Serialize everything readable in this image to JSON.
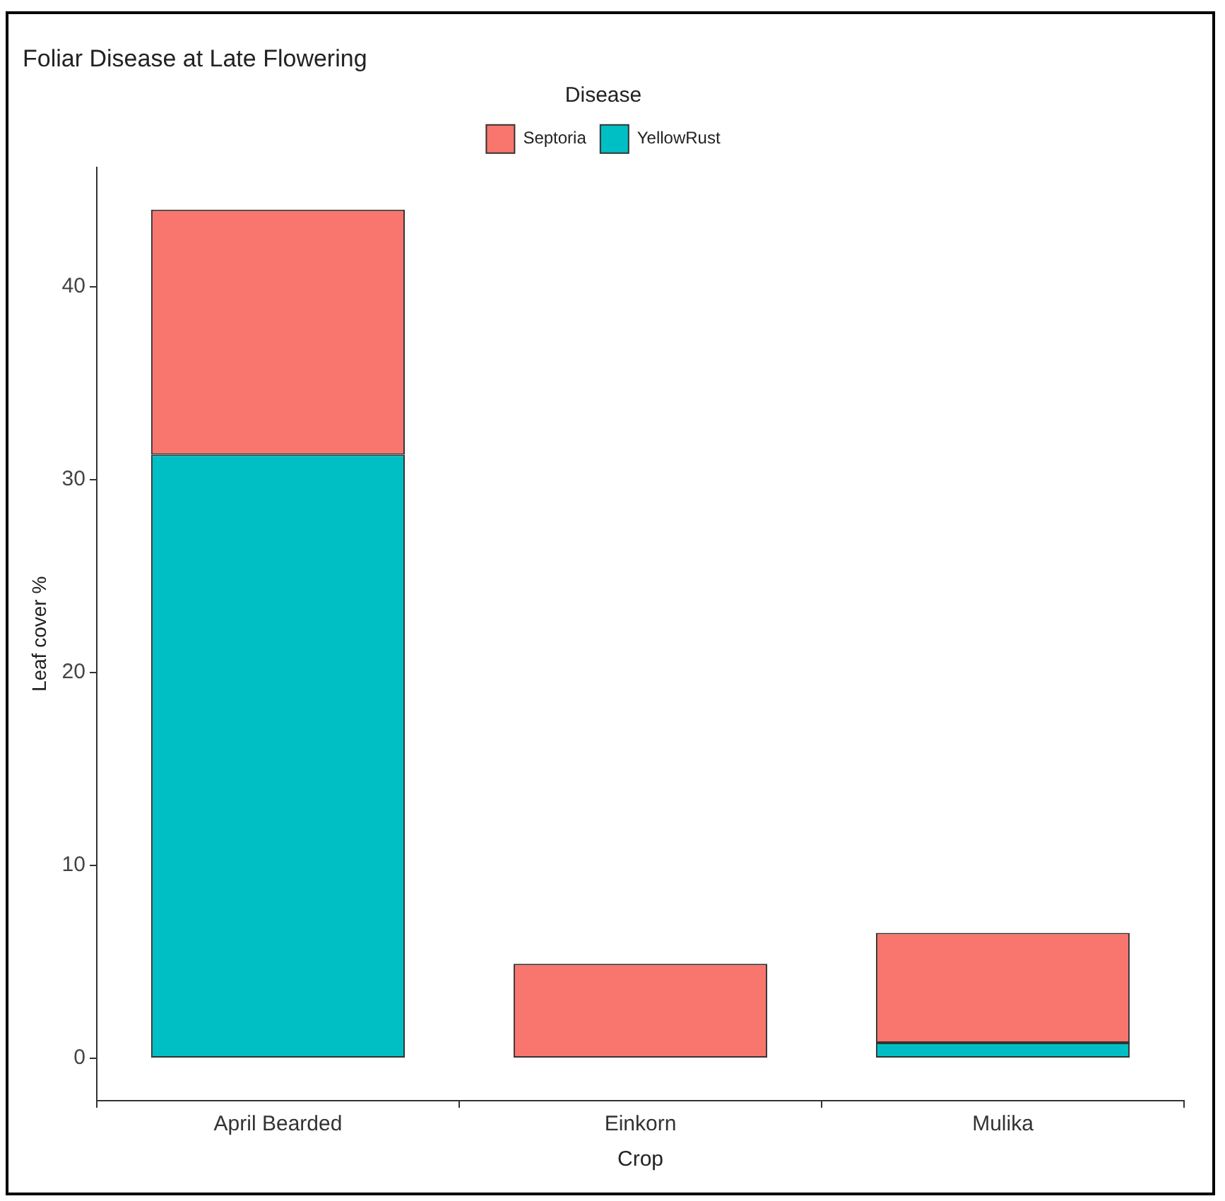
{
  "chart_data": {
    "type": "bar",
    "title": "Foliar Disease at Late Flowering",
    "xlabel": "Crop",
    "ylabel": "Leaf cover %",
    "legend_title": "Disease",
    "categories": [
      "April Bearded",
      "Einkorn",
      "Mulika"
    ],
    "stacked": true,
    "series": [
      {
        "name": "YellowRust",
        "color": "#00bfc4",
        "values": [
          31.3,
          0,
          0.8
        ]
      },
      {
        "name": "Septoria",
        "color": "#f8766d",
        "values": [
          12.7,
          4.9,
          5.7
        ]
      }
    ],
    "ylim": [
      -2.2,
      46.2
    ],
    "yticks": [
      0,
      10,
      20,
      30,
      40
    ],
    "grid": false,
    "legend": "top"
  }
}
